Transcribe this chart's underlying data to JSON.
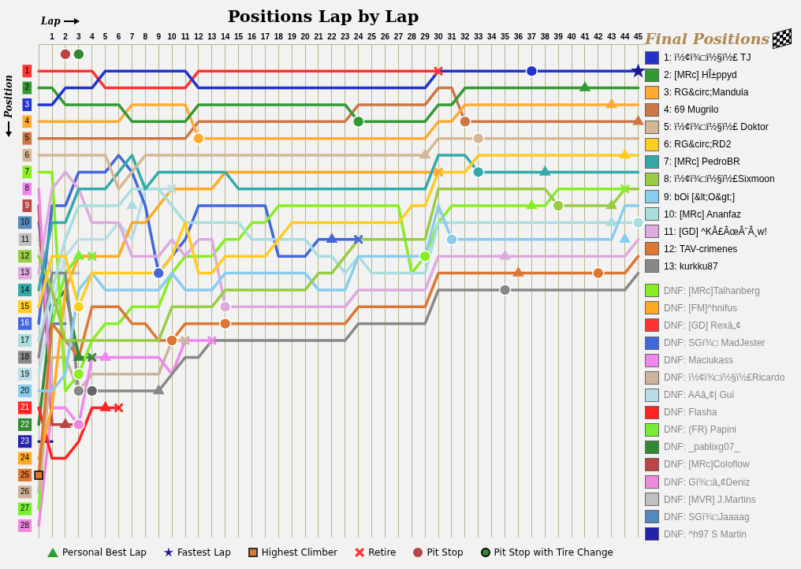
{
  "chart_data": {
    "type": "line",
    "title": "Positions Lap by Lap",
    "xlabel": "Lap",
    "ylabel": "Position",
    "legend_title": "Final Positions",
    "legend": "right",
    "grid": "x",
    "x": [
      0,
      1,
      2,
      3,
      4,
      5,
      6,
      7,
      8,
      9,
      10,
      11,
      12,
      13,
      14,
      15,
      16,
      17,
      18,
      19,
      20,
      21,
      22,
      23,
      24,
      25,
      26,
      27,
      28,
      29,
      30,
      31,
      32,
      33,
      34,
      35,
      36,
      37,
      38,
      39,
      40,
      41,
      42,
      43,
      44,
      45
    ],
    "xlim": [
      0,
      45.5
    ],
    "xticks": [
      1,
      2,
      3,
      4,
      5,
      6,
      7,
      8,
      9,
      10,
      11,
      12,
      13,
      14,
      15,
      16,
      17,
      18,
      19,
      20,
      21,
      22,
      23,
      24,
      25,
      26,
      27,
      28,
      29,
      30,
      31,
      32,
      33,
      34,
      35,
      36,
      37,
      38,
      39,
      40,
      41,
      42,
      43,
      44,
      45
    ],
    "ylim": [
      28.7,
      -0.6
    ],
    "yticks": [
      1,
      2,
      3,
      4,
      5,
      6,
      7,
      8,
      9,
      10,
      11,
      12,
      13,
      14,
      15,
      16,
      17,
      18,
      19,
      20,
      21,
      22,
      23,
      24,
      25,
      26,
      27,
      28
    ],
    "series": [
      {
        "name": "1: ï½¢ï¾□ï½§ï½£ TJ",
        "color": "#2233cc",
        "values": [
          3,
          3,
          2,
          2,
          2,
          1,
          1,
          1,
          1,
          1,
          1,
          1,
          2,
          2,
          2,
          2,
          2,
          2,
          2,
          2,
          2,
          2,
          2,
          2,
          2,
          2,
          2,
          2,
          2,
          2,
          1,
          1,
          1,
          1,
          1,
          1,
          1,
          1,
          1,
          1,
          1,
          1,
          1,
          1,
          1,
          1
        ]
      },
      {
        "name": "2: [MRc] HÎ±ppyd",
        "color": "#339933",
        "values": [
          2,
          2,
          3,
          3,
          3,
          3,
          3,
          4,
          4,
          4,
          4,
          4,
          3,
          3,
          3,
          3,
          3,
          3,
          3,
          3,
          3,
          3,
          3,
          3,
          4,
          4,
          4,
          4,
          4,
          4,
          3,
          3,
          2,
          2,
          2,
          2,
          2,
          2,
          2,
          2,
          2,
          2,
          2,
          2,
          2,
          2
        ]
      },
      {
        "name": "3: RG&circ;Mandula",
        "color": "#ffaa33",
        "values": [
          4,
          4,
          4,
          4,
          4,
          4,
          4,
          3,
          3,
          3,
          3,
          3,
          5,
          5,
          5,
          5,
          5,
          5,
          5,
          5,
          5,
          5,
          5,
          5,
          5,
          5,
          5,
          5,
          5,
          5,
          4,
          4,
          3,
          3,
          3,
          3,
          3,
          3,
          3,
          3,
          3,
          3,
          3,
          3,
          3,
          3
        ]
      },
      {
        "name": "4: 69 Mugrilo",
        "color": "#cc7744",
        "values": [
          5,
          5,
          5,
          5,
          5,
          5,
          5,
          5,
          5,
          5,
          5,
          5,
          4,
          4,
          4,
          4,
          4,
          4,
          4,
          4,
          4,
          4,
          4,
          4,
          3,
          3,
          3,
          3,
          3,
          3,
          2,
          2,
          4,
          4,
          4,
          4,
          4,
          4,
          4,
          4,
          4,
          4,
          4,
          4,
          4,
          4
        ]
      },
      {
        "name": "5: ï½¢ï¾□ï½§ï½£ Doktor",
        "color": "#d4b896",
        "values": [
          6,
          6,
          6,
          6,
          6,
          6,
          8,
          7,
          6,
          6,
          6,
          6,
          6,
          6,
          6,
          6,
          6,
          6,
          6,
          6,
          6,
          6,
          6,
          6,
          6,
          6,
          6,
          6,
          6,
          6,
          5,
          5,
          5,
          5,
          5,
          5,
          5,
          5,
          5,
          5,
          5,
          5,
          5,
          5,
          5,
          5
        ]
      },
      {
        "name": "6: RG&circ;RD2",
        "color": "#ffcc22",
        "values": [
          15,
          12,
          12,
          15,
          13,
          13,
          13,
          13,
          13,
          13,
          12,
          10,
          13,
          13,
          12,
          12,
          12,
          12,
          11,
          10,
          10,
          10,
          10,
          10,
          10,
          10,
          10,
          10,
          9,
          9,
          7,
          7,
          7,
          6,
          6,
          6,
          6,
          6,
          6,
          6,
          6,
          6,
          6,
          6,
          6,
          6
        ]
      },
      {
        "name": "7: [MRc] PedroBR",
        "color": "#33aaaa",
        "values": [
          14,
          10,
          10,
          8,
          8,
          8,
          7,
          6,
          8,
          7,
          7,
          7,
          7,
          7,
          7,
          8,
          8,
          8,
          8,
          8,
          8,
          8,
          8,
          8,
          8,
          8,
          8,
          8,
          8,
          8,
          6,
          6,
          6,
          7,
          7,
          7,
          7,
          7,
          7,
          7,
          7,
          7,
          7,
          7,
          7,
          7
        ]
      },
      {
        "name": "8: ï½¢ï¾□ï½§ï½£Sixmoon",
        "color": "#99cc44",
        "values": [
          12,
          14,
          17,
          17,
          17,
          17,
          17,
          17,
          17,
          17,
          15,
          15,
          15,
          15,
          14,
          14,
          14,
          14,
          14,
          14,
          14,
          13,
          13,
          12,
          11,
          11,
          11,
          11,
          11,
          11,
          8,
          8,
          8,
          8,
          8,
          8,
          8,
          8,
          8,
          9,
          9,
          9,
          9,
          9,
          8,
          8
        ]
      },
      {
        "name": "9: bOi [&lt;O&gt;]",
        "color": "#88ccee",
        "values": [
          20,
          20,
          19,
          14,
          13,
          14,
          14,
          14,
          14,
          14,
          13,
          14,
          14,
          14,
          13,
          13,
          13,
          13,
          13,
          13,
          13,
          14,
          14,
          14,
          12,
          12,
          12,
          12,
          12,
          12,
          9,
          11,
          11,
          11,
          11,
          11,
          11,
          11,
          11,
          11,
          11,
          11,
          11,
          11,
          9,
          9
        ]
      },
      {
        "name": "10: [MRc] Ananfaz",
        "color": "#aadddd",
        "values": [
          17,
          14,
          11,
          9,
          9,
          9,
          9,
          8,
          8,
          8,
          9,
          10,
          10,
          10,
          10,
          10,
          11,
          11,
          11,
          11,
          11,
          12,
          12,
          13,
          12,
          13,
          13,
          13,
          13,
          13,
          10,
          10,
          10,
          10,
          10,
          10,
          10,
          10,
          10,
          10,
          10,
          10,
          10,
          10,
          10,
          10
        ]
      },
      {
        "name": "11: [GD] ^KÂ£ÃœÂ¨Â¸w!",
        "color": "#ddaadd",
        "values": [
          13,
          8,
          7,
          8,
          10,
          10,
          10,
          12,
          12,
          12,
          11,
          12,
          11,
          11,
          15,
          15,
          15,
          15,
          15,
          15,
          15,
          15,
          15,
          15,
          14,
          14,
          14,
          14,
          14,
          14,
          12,
          12,
          12,
          12,
          12,
          12,
          12,
          12,
          12,
          12,
          12,
          12,
          12,
          12,
          12,
          11
        ]
      },
      {
        "name": "12: TAV-crimenes",
        "color": "#dd7733",
        "values": [
          25,
          16,
          17,
          18,
          15,
          15,
          15,
          16,
          16,
          17,
          17,
          16,
          16,
          16,
          16,
          16,
          16,
          16,
          16,
          16,
          16,
          16,
          16,
          16,
          15,
          15,
          15,
          15,
          15,
          15,
          13,
          13,
          13,
          13,
          13,
          13,
          13,
          13,
          13,
          13,
          13,
          13,
          13,
          13,
          13,
          12
        ]
      },
      {
        "name": "13: kurkku87",
        "color": "#888888",
        "values": [
          18,
          13,
          13,
          20,
          20,
          20,
          20,
          20,
          20,
          20,
          19,
          18,
          18,
          17,
          17,
          17,
          17,
          17,
          17,
          17,
          17,
          17,
          17,
          17,
          16,
          16,
          16,
          16,
          16,
          16,
          14,
          14,
          14,
          14,
          14,
          14,
          14,
          14,
          14,
          14,
          14,
          14,
          14,
          14,
          14,
          13
        ]
      },
      {
        "name": "DNF: [MRc]Talhanberg",
        "color": "#88ee22",
        "values": [
          7,
          7,
          20,
          19,
          17,
          16,
          16,
          15,
          15,
          15,
          13,
          12,
          12,
          12,
          11,
          11,
          10,
          10,
          9,
          9,
          9,
          9,
          9,
          9,
          9,
          9,
          9,
          9,
          13,
          12,
          10,
          9,
          9,
          9,
          9,
          9,
          9,
          9,
          9,
          8,
          8,
          8,
          8,
          8,
          8,
          null
        ]
      },
      {
        "name": "DNF: [FM]^hnifus",
        "color": "#ffaa22",
        "values": [
          24,
          21,
          14,
          12,
          12,
          12,
          12,
          10,
          10,
          9,
          8,
          8,
          8,
          8,
          7,
          7,
          7,
          7,
          7,
          7,
          7,
          7,
          7,
          7,
          7,
          7,
          7,
          7,
          7,
          7,
          7,
          null,
          null,
          null,
          null,
          null,
          null,
          null,
          null,
          null,
          null,
          null,
          null,
          null,
          null,
          null
        ]
      },
      {
        "name": "DNF: [GD] Rexâ„¢",
        "color": "#ff3333",
        "values": [
          1,
          1,
          1,
          1,
          1,
          2,
          2,
          2,
          2,
          2,
          2,
          2,
          1,
          1,
          1,
          1,
          1,
          1,
          1,
          1,
          1,
          1,
          1,
          1,
          1,
          1,
          1,
          1,
          1,
          1,
          1,
          null,
          null,
          null,
          null,
          null,
          null,
          null,
          null,
          null,
          null,
          null,
          null,
          null,
          null,
          null
        ]
      },
      {
        "name": "DNF: SGï¾□ MadJester",
        "color": "#4466dd",
        "values": [
          16,
          9,
          9,
          7,
          7,
          7,
          6,
          7,
          9,
          13,
          12,
          11,
          9,
          9,
          9,
          9,
          9,
          9,
          12,
          12,
          12,
          11,
          11,
          11,
          11,
          null,
          null,
          null,
          null,
          null,
          null,
          null,
          null,
          null,
          null,
          null,
          null,
          null,
          null,
          null,
          null,
          null,
          null,
          null,
          null,
          null
        ]
      },
      {
        "name": "DNF: Maciukass",
        "color": "#ee88ee",
        "values": [
          8,
          21,
          21,
          22,
          18,
          18,
          18,
          18,
          18,
          18,
          19,
          17,
          17,
          17,
          null,
          null,
          null,
          null,
          null,
          null,
          null,
          null,
          null,
          null,
          null,
          null,
          null,
          null,
          null,
          null,
          null,
          null,
          null,
          null,
          null,
          null,
          null,
          null,
          null,
          null,
          null,
          null,
          null,
          null,
          null,
          null
        ]
      },
      {
        "name": "DNF: ï½¢ï¾□ï½§ï½£Ricardo",
        "color": "#ccb39a",
        "values": [
          26,
          18,
          18,
          20,
          19,
          19,
          19,
          19,
          19,
          19,
          17,
          17,
          null,
          null,
          null,
          null,
          null,
          null,
          null,
          null,
          null,
          null,
          null,
          null,
          null,
          null,
          null,
          null,
          null,
          null,
          null,
          null,
          null,
          null,
          null,
          null,
          null,
          null,
          null,
          null,
          null,
          null,
          null,
          null,
          null,
          null
        ]
      },
      {
        "name": "DNF: AAâ„¢| Gui",
        "color": "#bbdde8",
        "values": [
          19,
          15,
          12,
          11,
          11,
          11,
          10,
          11,
          8,
          8,
          8,
          null,
          null,
          null,
          null,
          null,
          null,
          null,
          null,
          null,
          null,
          null,
          null,
          null,
          null,
          null,
          null,
          null,
          null,
          null,
          null,
          null,
          null,
          null,
          null,
          null,
          null,
          null,
          null,
          null,
          null,
          null,
          null,
          null,
          null,
          null
        ]
      },
      {
        "name": "DNF: Flasha",
        "color": "#ff2222",
        "values": [
          21,
          24,
          24,
          23,
          21,
          21,
          21,
          null,
          null,
          null,
          null,
          null,
          null,
          null,
          null,
          null,
          null,
          null,
          null,
          null,
          null,
          null,
          null,
          null,
          null,
          null,
          null,
          null,
          null,
          null,
          null,
          null,
          null,
          null,
          null,
          null,
          null,
          null,
          null,
          null,
          null,
          null,
          null,
          null,
          null,
          null
        ]
      },
      {
        "name": "DNF: (FR) Papini",
        "color": "#77ee33",
        "values": [
          27,
          16,
          13,
          12,
          12,
          null,
          null,
          null,
          null,
          null,
          null,
          null,
          null,
          null,
          null,
          null,
          null,
          null,
          null,
          null,
          null,
          null,
          null,
          null,
          null,
          null,
          null,
          null,
          null,
          null,
          null,
          null,
          null,
          null,
          null,
          null,
          null,
          null,
          null,
          null,
          null,
          null,
          null,
          null,
          null,
          null
        ]
      },
      {
        "name": "DNF: _pablixg07_",
        "color": "#338833",
        "values": [
          22,
          15,
          14,
          18,
          18,
          null,
          null,
          null,
          null,
          null,
          null,
          null,
          null,
          null,
          null,
          null,
          null,
          null,
          null,
          null,
          null,
          null,
          null,
          null,
          null,
          null,
          null,
          null,
          null,
          null,
          null,
          null,
          null,
          null,
          null,
          null,
          null,
          null,
          null,
          null,
          null,
          null,
          null,
          null,
          null,
          null
        ]
      },
      {
        "name": "DNF: [MRc]Coloflow",
        "color": "#bb4444",
        "values": [
          9,
          22,
          22,
          22,
          null,
          null,
          null,
          null,
          null,
          null,
          null,
          null,
          null,
          null,
          null,
          null,
          null,
          null,
          null,
          null,
          null,
          null,
          null,
          null,
          null,
          null,
          null,
          null,
          null,
          null,
          null,
          null,
          null,
          null,
          null,
          null,
          null,
          null,
          null,
          null,
          null,
          null,
          null,
          null,
          null,
          null
        ]
      },
      {
        "name": "DNF: Gï¾□â„¢Deniz",
        "color": "#ee88dd",
        "values": [
          28,
          21,
          21,
          null,
          null,
          null,
          null,
          null,
          null,
          null,
          null,
          null,
          null,
          null,
          null,
          null,
          null,
          null,
          null,
          null,
          null,
          null,
          null,
          null,
          null,
          null,
          null,
          null,
          null,
          null,
          null,
          null,
          null,
          null,
          null,
          null,
          null,
          null,
          null,
          null,
          null,
          null,
          null,
          null,
          null,
          null
        ]
      },
      {
        "name": "DNF: [MVR] J.Martins",
        "color": "#c0c0c0",
        "values": [
          11,
          13,
          13,
          13,
          null,
          null,
          null,
          null,
          null,
          null,
          null,
          null,
          null,
          null,
          null,
          null,
          null,
          null,
          null,
          null,
          null,
          null,
          null,
          null,
          null,
          null,
          null,
          null,
          null,
          null,
          null,
          null,
          null,
          null,
          null,
          null,
          null,
          null,
          null,
          null,
          null,
          null,
          null,
          null,
          null,
          null
        ]
      },
      {
        "name": "DNF: SGï¾□Jaaaag",
        "color": "#5588bb",
        "values": [
          10,
          16,
          16,
          null,
          null,
          null,
          null,
          null,
          null,
          null,
          null,
          null,
          null,
          null,
          null,
          null,
          null,
          null,
          null,
          null,
          null,
          null,
          null,
          null,
          null,
          null,
          null,
          null,
          null,
          null,
          null,
          null,
          null,
          null,
          null,
          null,
          null,
          null,
          null,
          null,
          null,
          null,
          null,
          null,
          null,
          null
        ]
      },
      {
        "name": "DNF: ^h97 S Martin",
        "color": "#2222aa",
        "values": [
          23,
          23,
          null,
          null,
          null,
          null,
          null,
          null,
          null,
          null,
          null,
          null,
          null,
          null,
          null,
          null,
          null,
          null,
          null,
          null,
          null,
          null,
          null,
          null,
          null,
          null,
          null,
          null,
          null,
          null,
          null,
          null,
          null,
          null,
          null,
          null,
          null,
          null,
          null,
          null,
          null,
          null,
          null,
          null,
          null,
          null
        ]
      },
      {
        "name": "Personal Best Lap",
        "type": "scatter",
        "marker": "triangle",
        "x": [
          41,
          43,
          45,
          29,
          44,
          38,
          37,
          43,
          43,
          44,
          35,
          36,
          22,
          7,
          3,
          3,
          5,
          9,
          5,
          2
        ],
        "values": [
          2,
          3,
          4,
          6,
          6,
          7,
          9,
          9,
          10,
          11,
          12,
          13,
          11,
          9,
          12,
          18,
          18,
          20,
          21,
          22
        ],
        "colors": [
          "#339933",
          "#ffaa33",
          "#cc7744",
          "#d4b896",
          "#ffcc22",
          "#33aaaa",
          "#88ee22",
          "#99cc44",
          "#aadddd",
          "#88ccee",
          "#ddaadd",
          "#dd7733",
          "#4466dd",
          "#aadddd",
          "#77ee33",
          "#338833",
          "#ee88ee",
          "#888888",
          "#ff2222",
          "#bb4444"
        ]
      },
      {
        "name": "Fastest Lap",
        "type": "scatter",
        "marker": "star",
        "x": [
          45
        ],
        "values": [
          1
        ],
        "colors": [
          "#1a1a99"
        ]
      },
      {
        "name": "Highest Climber",
        "type": "scatter",
        "marker": "square",
        "x": [
          0
        ],
        "values": [
          25
        ],
        "colors": [
          "#dd7733"
        ]
      },
      {
        "name": "Retire",
        "type": "scatter",
        "marker": "cross",
        "x": [
          30,
          30,
          44,
          24,
          10,
          11,
          13,
          4,
          4,
          6
        ],
        "values": [
          1,
          7,
          8,
          11,
          8,
          17,
          17,
          12,
          18,
          21
        ],
        "colors": [
          "#ff3333",
          "#ffaa22",
          "#88ee22",
          "#4466dd",
          "#bbdde8",
          "#ccb39a",
          "#ee88ee",
          "#77ee33",
          "#338833",
          "#ff2222"
        ]
      },
      {
        "name": "Pit Stop",
        "type": "scatter",
        "marker": "circle",
        "x": [
          2,
          12,
          24,
          32,
          33,
          33,
          37,
          39,
          31,
          45,
          42,
          35,
          29,
          9,
          14,
          14,
          10,
          3,
          3,
          3,
          3
        ],
        "values": [
          0,
          5,
          4,
          4,
          5,
          7,
          1,
          9,
          11,
          10,
          13,
          14,
          12,
          13,
          15,
          16,
          17,
          15,
          19,
          22,
          20
        ],
        "colors": [
          "#bb4444",
          "#ffaa33",
          "#339933",
          "#cc7744",
          "#d4b896",
          "#33aaaa",
          "#2233cc",
          "#99cc44",
          "#88ccee",
          "#aadddd",
          "#dd7733",
          "#888888",
          "#88ee22",
          "#4466dd",
          "#ddaadd",
          "#dd7733",
          "#dd7733",
          "#ffcc22",
          "#88ee22",
          "#ee88dd",
          "#888888"
        ]
      },
      {
        "name": "Pit Stop with Tire Change",
        "type": "scatter",
        "marker": "circle",
        "x": [
          3,
          4
        ],
        "values": [
          0,
          20
        ],
        "colors": [
          "#338833",
          "#666666"
        ]
      }
    ]
  }
}
